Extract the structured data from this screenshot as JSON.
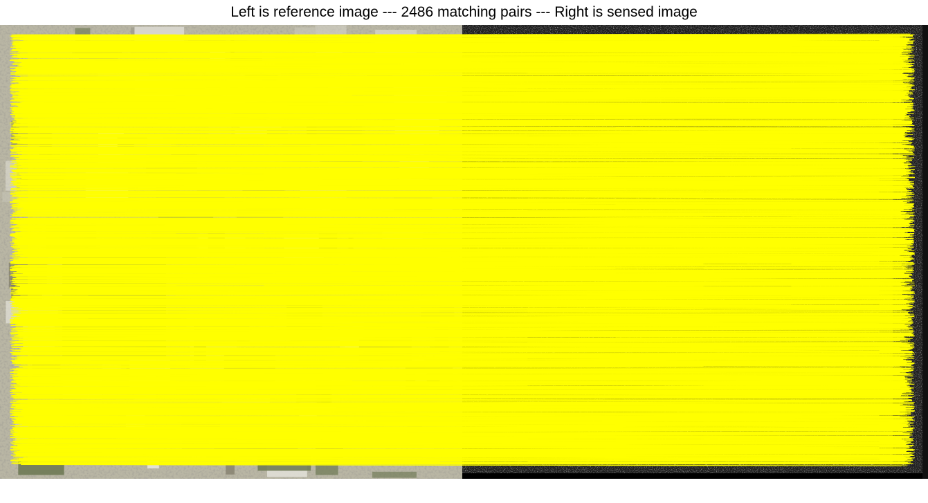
{
  "figure": {
    "title": "Left is reference image --- 2486 matching pairs --- Right is sensed image",
    "colors": {
      "background": "#ffffff",
      "match_line": "#ffff00",
      "reference_tint": "#b9b6a4",
      "sensed_tint": "#1f1f1f"
    }
  },
  "panels": {
    "reference": {
      "kind": "aerial-optical",
      "icon": "reference-image"
    },
    "sensed": {
      "kind": "sar-grayscale",
      "icon": "sensed-image"
    }
  },
  "matches": {
    "count": 2486
  }
}
